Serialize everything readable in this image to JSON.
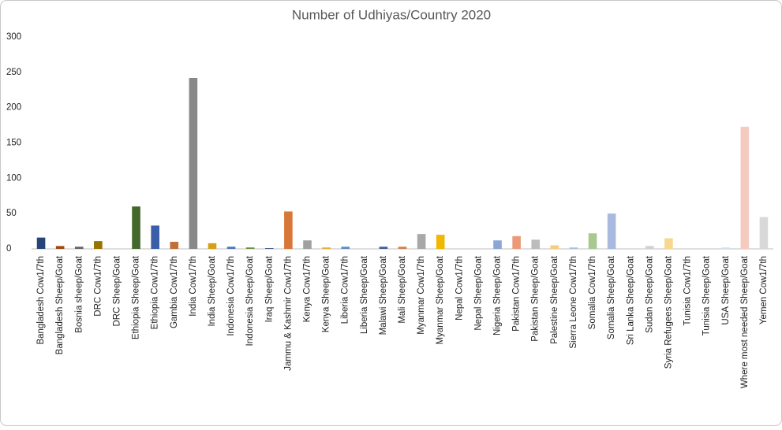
{
  "chart_data": {
    "type": "bar",
    "title": "Number of Udhiyas/Country 2020",
    "categories": [
      "Bangladesh Cow1/7th",
      "Bangladesh Sheep/Goat",
      "Bosnia sheep/Goat",
      "DRC Cow1/7th",
      "DRC Sheep/Goat",
      "Ethiopia Sheep/Goat",
      "Ethiopia Cow1/7th",
      "Gambia Cow1/7th",
      "India Cow1/7th",
      "India Sheep/Goat",
      "Indonesia Cow1/7th",
      "Indonesia Sheep/Goat",
      "Iraq Sheep/Goat",
      "Jammu & Kashmir Cow1/7th",
      "Kenya Cow1/7th",
      "Kenya Sheep/Goat",
      "Liberia Cow1/7th",
      "Liberia Sheep/Goat",
      "Malawi Sheep/Goat",
      "Mali Sheep/Goat",
      "Myanmar Cow1/7th",
      "Myanmar Sheep/Goat",
      "Nepal Cow1/7th",
      "Nepal Sheep/Goat",
      "Nigeria Sheep/Goat",
      "Pakistan Cow1/7th",
      "Pakistan Sheep/Goat",
      "Palestine Sheep/Goat",
      "Sierra Leone Cow1/7th",
      "Somalia Cow1/7th",
      "Somalia Sheep/Goat",
      "Sri Lanka Sheep/Goat",
      "Sudan Sheep/Goat",
      "Syria Refugees Sheep/Goat",
      "Tunisia Cow1/7th",
      "Tunisia Sheep/Goat",
      "USA Sheep/Goat",
      "Where most needed Sheep/Goat",
      "Yemen Cow1/7th"
    ],
    "values": [
      16,
      4,
      3,
      11,
      0,
      60,
      33,
      10,
      242,
      8,
      3,
      2,
      1,
      53,
      12,
      2,
      3,
      0,
      3,
      3,
      21,
      20,
      0,
      0,
      12,
      18,
      13,
      5,
      2,
      22,
      50,
      0,
      4,
      15,
      0,
      0,
      2,
      173,
      45
    ],
    "colors": [
      "#264478",
      "#9e480e",
      "#636363",
      "#997300",
      "#255e91",
      "#43682b",
      "#3a5ea8",
      "#c0703a",
      "#888888",
      "#d4a017",
      "#4a76b8",
      "#6a8f3c",
      "#2f4f7f",
      "#d8773a",
      "#a0a0a0",
      "#e0b030",
      "#5b8bc8",
      "#8ab06a",
      "#3d5f96",
      "#d0804a",
      "#a8a8a8",
      "#f0b800",
      "#6e8fc4",
      "#9cc080",
      "#8ea6d6",
      "#eb9a78",
      "#bcbcbc",
      "#f5cc7a",
      "#a8c0e6",
      "#a8c890",
      "#a9b9e0",
      "#f4b99c",
      "#d0d0d0",
      "#f8d890",
      "#c0d0ee",
      "#c4d8b8",
      "#d4dcf0",
      "#f6cbbf",
      "#d8d8d8"
    ],
    "ylim": [
      0,
      300
    ],
    "yticks": [
      0,
      50,
      100,
      150,
      200,
      250,
      300
    ],
    "grid": false
  }
}
